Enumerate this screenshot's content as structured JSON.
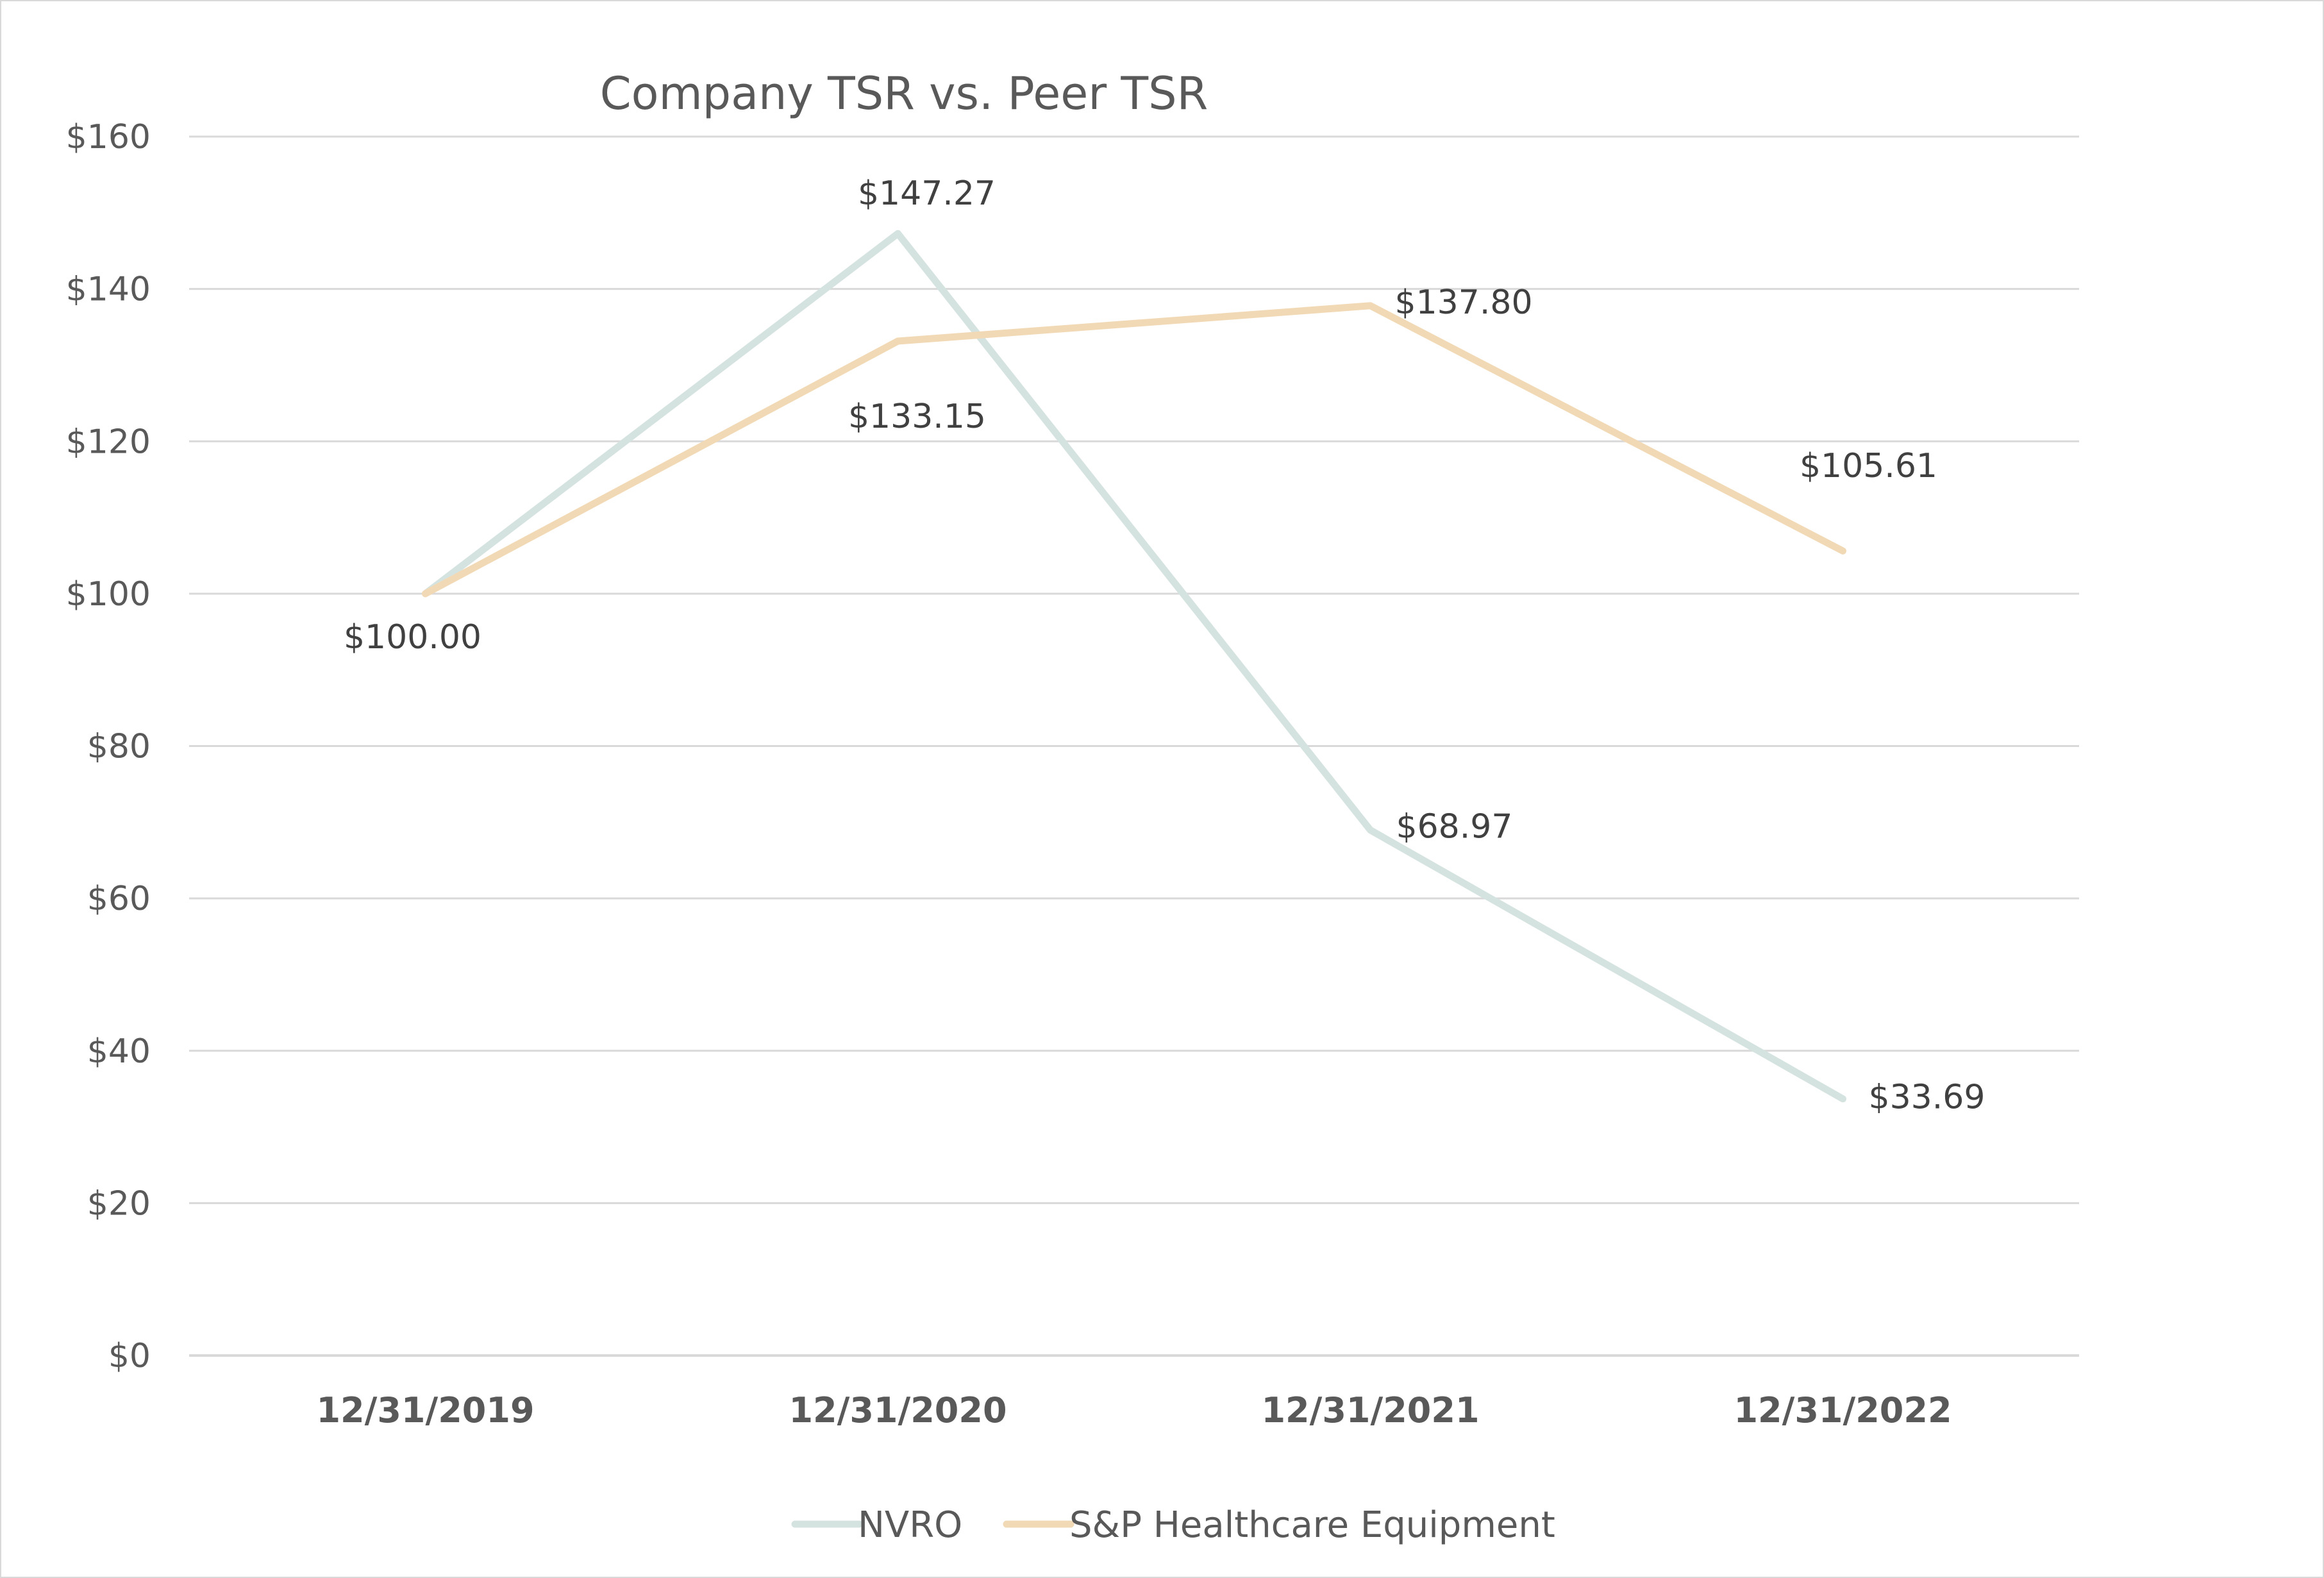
{
  "chart_data": {
    "type": "line",
    "title": "Company TSR vs. Peer TSR",
    "xlabel": "",
    "ylabel": "",
    "categories": [
      "12/31/2019",
      "12/31/2020",
      "12/31/2021",
      "12/31/2022"
    ],
    "ylim": [
      0,
      160
    ],
    "yticks": [
      0,
      20,
      40,
      60,
      80,
      100,
      120,
      140,
      160
    ],
    "ytick_labels": [
      "$0",
      "$20",
      "$40",
      "$60",
      "$80",
      "$100",
      "$120",
      "$140",
      "$160"
    ],
    "grid": true,
    "legend_position": "bottom",
    "series": [
      {
        "name": "NVRO",
        "color": "#d5e3e0",
        "values": [
          100.0,
          147.27,
          68.97,
          33.69
        ],
        "labels": [
          "$100.00",
          "$147.27",
          "$68.97",
          "$33.69"
        ]
      },
      {
        "name": "S&P Healthcare Equipment",
        "color": "#f2d9b5",
        "values": [
          100.0,
          133.15,
          137.8,
          105.61
        ],
        "labels": [
          "$100.00",
          "$133.15",
          "$137.80",
          "$105.61"
        ]
      }
    ]
  }
}
